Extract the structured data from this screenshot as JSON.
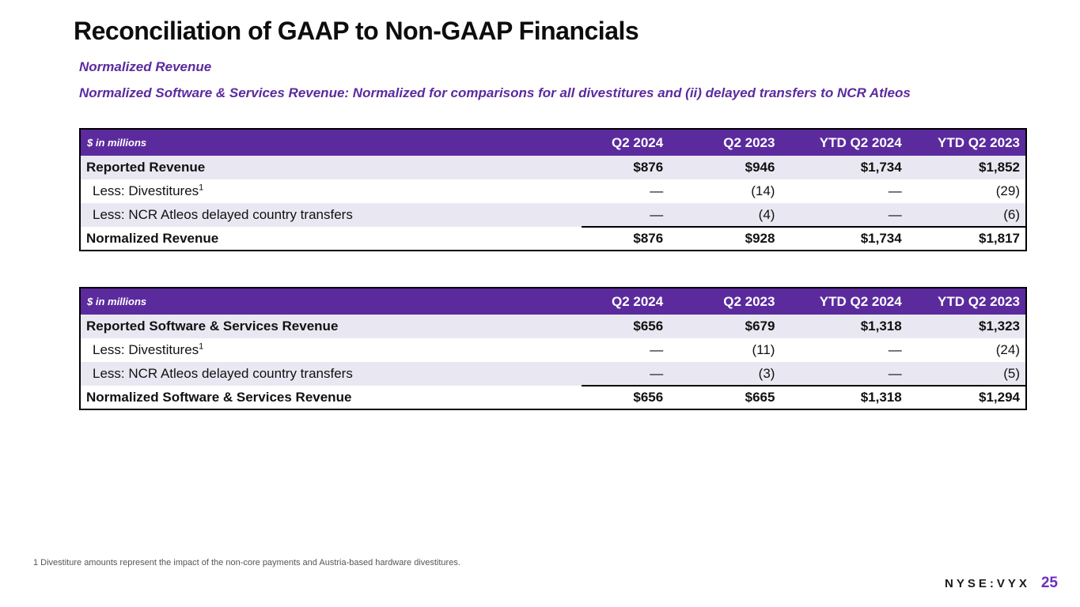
{
  "slide": {
    "title": "Reconciliation of GAAP to Non-GAAP Financials",
    "subtitle1": "Normalized Revenue",
    "subtitle2": "Normalized Software & Services Revenue: Normalized for comparisons for all divestitures and (ii) delayed transfers to NCR Atleos",
    "footnote": "1 Divestiture amounts represent the impact of the non-core payments and Austria-based hardware divestitures.",
    "ticker": "NYSE:VYX",
    "page_number": "25"
  },
  "colors": {
    "brand_purple": "#5B2B9E",
    "row_alt_lavender": "#E9E8F2",
    "page_number_purple": "#6E2FBF",
    "title_black": "#0d0d0d"
  },
  "chart_data": [
    {
      "type": "table",
      "title": "Normalized Revenue",
      "unit_label": "$ in millions",
      "columns": [
        "Q2 2024",
        "Q2 2023",
        "YTD Q2 2024",
        "YTD Q2 2023"
      ],
      "rows": [
        {
          "label": "Reported Revenue",
          "sup": "",
          "bold": true,
          "indent": false,
          "total": false,
          "values": [
            "$876",
            "$946",
            "$1,734",
            "$1,852"
          ]
        },
        {
          "label": "Less: Divestitures",
          "sup": "1",
          "bold": false,
          "indent": true,
          "total": false,
          "values": [
            "—",
            "(14)",
            "—",
            "(29)"
          ]
        },
        {
          "label": "Less: NCR Atleos delayed country transfers",
          "sup": "",
          "bold": false,
          "indent": true,
          "total": false,
          "values": [
            "—",
            "(4)",
            "—",
            "(6)"
          ]
        },
        {
          "label": "Normalized Revenue",
          "sup": "",
          "bold": true,
          "indent": false,
          "total": true,
          "values": [
            "$876",
            "$928",
            "$1,734",
            "$1,817"
          ]
        }
      ]
    },
    {
      "type": "table",
      "title": "Normalized Software & Services Revenue",
      "unit_label": "$ in millions",
      "columns": [
        "Q2 2024",
        "Q2 2023",
        "YTD Q2 2024",
        "YTD Q2 2023"
      ],
      "rows": [
        {
          "label": "Reported Software & Services Revenue",
          "sup": "",
          "bold": true,
          "indent": false,
          "total": false,
          "values": [
            "$656",
            "$679",
            "$1,318",
            "$1,323"
          ]
        },
        {
          "label": "Less: Divestitures",
          "sup": "1",
          "bold": false,
          "indent": true,
          "total": false,
          "values": [
            "—",
            "(11)",
            "—",
            "(24)"
          ]
        },
        {
          "label": "Less: NCR Atleos delayed country transfers",
          "sup": "",
          "bold": false,
          "indent": true,
          "total": false,
          "values": [
            "—",
            "(3)",
            "—",
            "(5)"
          ]
        },
        {
          "label": "Normalized Software & Services Revenue",
          "sup": "",
          "bold": true,
          "indent": false,
          "total": true,
          "values": [
            "$656",
            "$665",
            "$1,318",
            "$1,294"
          ]
        }
      ]
    }
  ]
}
